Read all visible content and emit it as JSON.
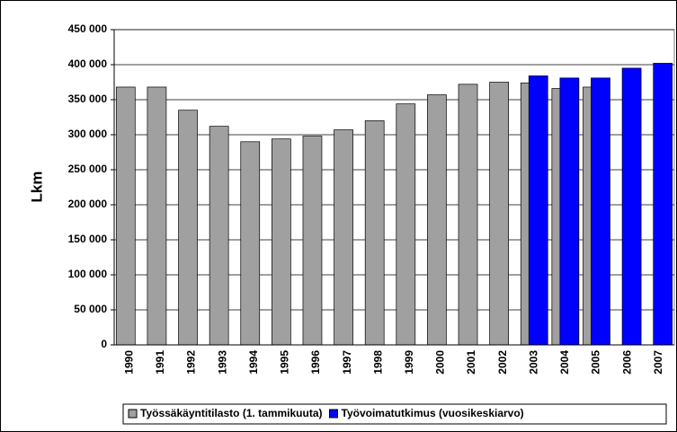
{
  "chart_data": {
    "type": "bar",
    "ylabel": "Lkm",
    "categories": [
      "1990",
      "1991",
      "1992",
      "1993",
      "1994",
      "1995",
      "1996",
      "1997",
      "1998",
      "1999",
      "2000",
      "2001",
      "2002",
      "2003",
      "2004",
      "2005",
      "2006",
      "2007"
    ],
    "series": [
      {
        "name": "Työssäkäyntitilasto (1. tammikuuta)",
        "color": "#a0a0a0",
        "values": [
          368000,
          368000,
          335000,
          312000,
          290000,
          294000,
          298000,
          307000,
          320000,
          344000,
          357000,
          372000,
          375000,
          374000,
          366000,
          368000,
          null,
          null
        ]
      },
      {
        "name": "Työvoimatutkimus (vuosikeskiarvo)",
        "color": "#0000ff",
        "values": [
          null,
          null,
          null,
          null,
          null,
          null,
          null,
          null,
          null,
          null,
          null,
          null,
          null,
          384000,
          381000,
          381000,
          395000,
          402000
        ]
      }
    ],
    "ylim": [
      0,
      450000
    ],
    "yticks": [
      0,
      {
        "value": 50000,
        "label": "50 000"
      },
      {
        "value": 100000,
        "label": "100 000"
      },
      {
        "value": 150000,
        "label": "150 000"
      },
      {
        "value": 200000,
        "label": "200 000"
      },
      {
        "value": 250000,
        "label": "250 000"
      },
      {
        "value": 300000,
        "label": "300 000"
      },
      {
        "value": 350000,
        "label": "350 000"
      },
      {
        "value": 400000,
        "label": "400 000"
      },
      {
        "value": 450000,
        "label": "450 000"
      }
    ],
    "grid": true,
    "legend": "bottom"
  }
}
